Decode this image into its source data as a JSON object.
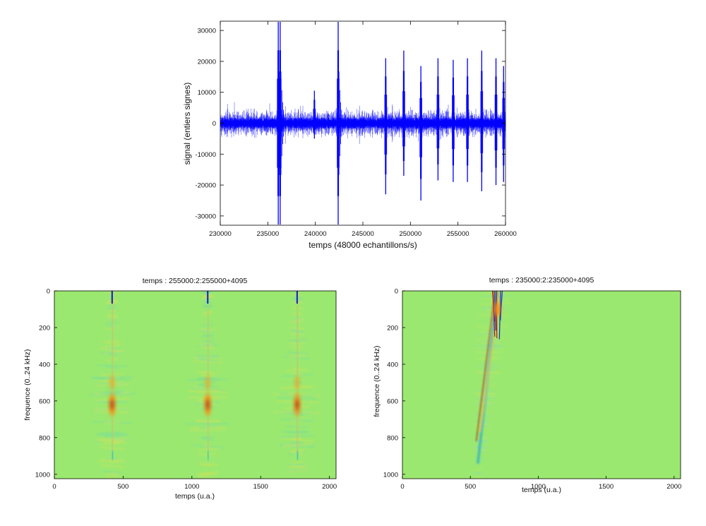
{
  "colors": {
    "signal": "#0000ff",
    "background_field": "#9be870",
    "heat_low": "#1e28c8",
    "heat_high": "#b4140a"
  },
  "chart_data": [
    {
      "type": "line",
      "title": "",
      "xlabel": "temps (48000 echantillons/s)",
      "ylabel": "signal (entiers signes)",
      "xlim": [
        230000,
        260000
      ],
      "ylim": [
        -33000,
        33000
      ],
      "xticks": [
        "230000",
        "235000",
        "240000",
        "245000",
        "250000",
        "255000",
        "260000"
      ],
      "yticks": [
        "30000",
        "20000",
        "10000",
        "0",
        "-10000",
        "-20000",
        "-30000"
      ],
      "grid": false,
      "noise_amplitude": 5000,
      "series": [
        {
          "spikes": [
            {
              "x": 236100,
              "max": 32767,
              "min": -32767
            },
            {
              "x": 236300,
              "max": 32767,
              "min": -32767
            },
            {
              "x": 239900,
              "max": 10500,
              "min": -5000
            },
            {
              "x": 242400,
              "max": 32767,
              "min": -32767
            },
            {
              "x": 247400,
              "max": 21000,
              "min": -23000
            },
            {
              "x": 249300,
              "max": 23500,
              "min": -17000
            },
            {
              "x": 251100,
              "max": 18500,
              "min": -25000
            },
            {
              "x": 252900,
              "max": 21000,
              "min": -18500
            },
            {
              "x": 254500,
              "max": 20500,
              "min": -19000
            },
            {
              "x": 256000,
              "max": 21000,
              "min": -19000
            },
            {
              "x": 257500,
              "max": 23500,
              "min": -22000
            },
            {
              "x": 259000,
              "max": 21000,
              "min": -20000
            },
            {
              "x": 259800,
              "max": 18500,
              "min": -19000
            }
          ]
        }
      ]
    },
    {
      "type": "heatmap",
      "title": "temps : 255000:2:255000+4095",
      "xlabel": "temps (u.a.)",
      "ylabel": "frequence (0..24 kHz)",
      "xlim": [
        0,
        2048
      ],
      "ylim": [
        0,
        1024
      ],
      "xticks": [
        "0",
        "500",
        "1000",
        "1500",
        "2000"
      ],
      "yticks": [
        "0",
        "200",
        "400",
        "600",
        "800",
        "1000"
      ],
      "ridges": [
        {
          "x": 420,
          "hotspot_y": 620
        },
        {
          "x": 1115,
          "hotspot_y": 620
        },
        {
          "x": 1765,
          "hotspot_y": 620
        }
      ]
    },
    {
      "type": "heatmap",
      "title": "temps : 235000:2:235000+4095",
      "xlabel": "temps (u.a.)",
      "ylabel": "frequence (0..24 kHz)",
      "xlim": [
        0,
        2048
      ],
      "ylim": [
        0,
        1024
      ],
      "xticks": [
        "0",
        "500",
        "1000",
        "1500",
        "2000"
      ],
      "yticks": [
        "0",
        "200",
        "400",
        "600",
        "800",
        "1000"
      ],
      "ridges": [
        {
          "x_top": 700,
          "x_bottom": 555,
          "hotspot_y": 100
        }
      ]
    }
  ]
}
